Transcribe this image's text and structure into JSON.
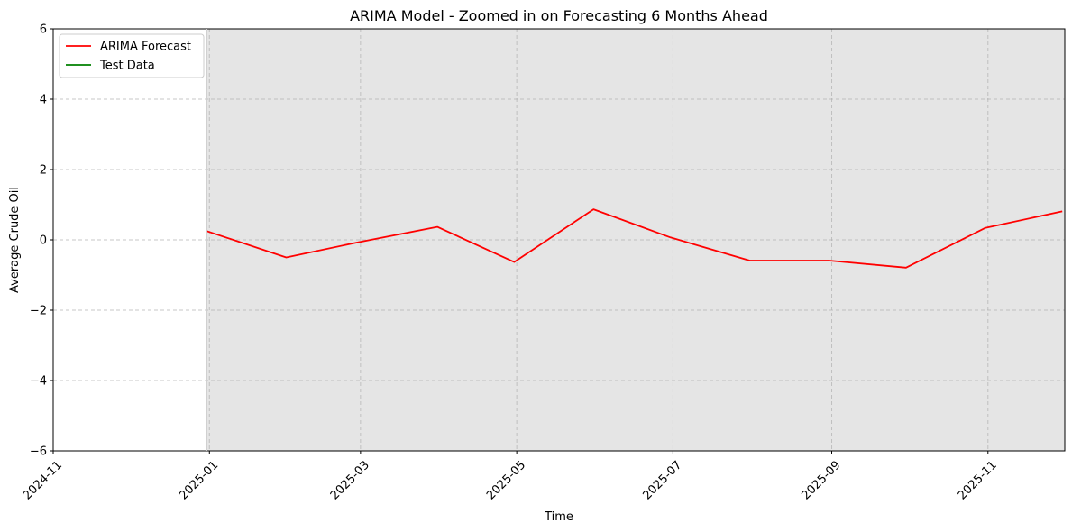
{
  "chart_data": {
    "type": "line",
    "title": "ARIMA Model - Zoomed in on Forecasting 6 Months Ahead",
    "xlabel": "Time",
    "ylabel": "Average Crude Oil",
    "xlim": [
      "2024-11-01",
      "2025-12-01"
    ],
    "ylim": [
      -6,
      6
    ],
    "x_ticks": [
      "2024-11",
      "2025-01",
      "2025-03",
      "2025-05",
      "2025-07",
      "2025-09",
      "2025-11"
    ],
    "x_tick_dates": [
      "2024-11-01",
      "2025-01-01",
      "2025-03-01",
      "2025-05-01",
      "2025-07-01",
      "2025-09-01",
      "2025-11-01"
    ],
    "y_ticks": [
      -6,
      -4,
      -2,
      0,
      2,
      4,
      6
    ],
    "y_tick_labels": [
      "−6",
      "−4",
      "−2",
      "0",
      "2",
      "4",
      "6"
    ],
    "grid": true,
    "legend_position": "top-left",
    "shaded_region": {
      "start": "2024-12-31",
      "end": "2025-12-01",
      "color": "#e5e5e5"
    },
    "series": [
      {
        "name": "ARIMA Forecast",
        "color": "#ff0000",
        "x": [
          "2024-12-31",
          "2025-01-31",
          "2025-02-28",
          "2025-03-31",
          "2025-04-30",
          "2025-05-31",
          "2025-06-30",
          "2025-07-31",
          "2025-08-31",
          "2025-09-30",
          "2025-10-31",
          "2025-11-30"
        ],
        "values": [
          0.25,
          -0.5,
          -0.07,
          0.37,
          -0.63,
          0.87,
          0.07,
          -0.59,
          -0.59,
          -0.79,
          0.34,
          0.81
        ]
      },
      {
        "name": "Test Data",
        "color": "#008000",
        "x": [],
        "values": []
      }
    ]
  }
}
